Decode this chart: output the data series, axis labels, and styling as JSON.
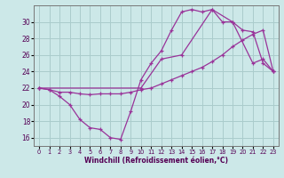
{
  "xlabel": "Windchill (Refroidissement éolien,°C)",
  "bg_color": "#cce8e8",
  "grid_color": "#aacccc",
  "line_color": "#993399",
  "xlim": [
    -0.5,
    23.5
  ],
  "ylim": [
    15.0,
    32.0
  ],
  "yticks": [
    16,
    18,
    20,
    22,
    24,
    26,
    28,
    30
  ],
  "xticks": [
    0,
    1,
    2,
    3,
    4,
    5,
    6,
    7,
    8,
    9,
    10,
    11,
    12,
    13,
    14,
    15,
    16,
    17,
    18,
    19,
    20,
    21,
    22,
    23
  ],
  "line1_x": [
    0,
    1,
    2,
    3,
    4,
    5,
    6,
    7,
    8,
    9,
    10,
    11,
    12,
    13,
    14,
    15,
    16,
    17,
    18,
    19,
    20,
    21,
    22,
    23
  ],
  "line1_y": [
    22,
    21.8,
    21.0,
    20.0,
    18.2,
    17.2,
    17.0,
    16.0,
    15.8,
    19.2,
    23.0,
    25.0,
    26.5,
    29.0,
    31.2,
    31.5,
    31.2,
    31.5,
    30.0,
    30.0,
    29.0,
    28.8,
    25.0,
    24.0
  ],
  "line2_x": [
    0,
    1,
    2,
    3,
    4,
    5,
    6,
    7,
    8,
    9,
    10,
    11,
    12,
    13,
    14,
    15,
    16,
    17,
    18,
    19,
    20,
    21,
    22,
    23
  ],
  "line2_y": [
    22,
    21.8,
    21.5,
    21.5,
    21.3,
    21.2,
    21.3,
    21.3,
    21.3,
    21.5,
    21.8,
    22.0,
    22.5,
    23.0,
    23.5,
    24.0,
    24.5,
    25.2,
    26.0,
    27.0,
    27.8,
    28.5,
    29.0,
    24.0
  ],
  "line3_x": [
    0,
    10,
    12,
    14,
    17,
    19,
    21,
    22,
    23
  ],
  "line3_y": [
    22,
    22,
    25.5,
    26,
    31.5,
    30.0,
    25.0,
    25.5,
    24.0
  ]
}
